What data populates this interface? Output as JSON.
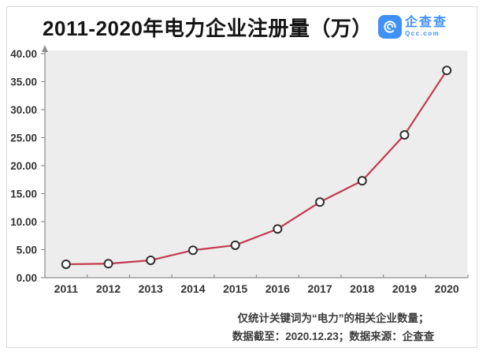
{
  "header": {
    "title": "2011-2020年电力企业注册量（万）",
    "logo": {
      "name": "企查查",
      "domain": "Qcc.com"
    }
  },
  "chart_data": {
    "type": "line",
    "title": "2011-2020年电力企业注册量（万）",
    "categories": [
      "2011",
      "2012",
      "2013",
      "2014",
      "2015",
      "2016",
      "2017",
      "2018",
      "2019",
      "2020"
    ],
    "values": [
      2.4,
      2.5,
      3.1,
      4.9,
      5.8,
      8.7,
      13.5,
      17.3,
      25.5,
      37.0
    ],
    "xlabel": "",
    "ylabel": "",
    "ylim": [
      0,
      40
    ],
    "y_tick_step": 5,
    "y_tick_decimals": 2,
    "grid": false,
    "legend": "none",
    "marker": "open-circle",
    "line_color": "#c23a52",
    "marker_stroke": "#2f2f2f",
    "marker_fill": "#fdfdfd",
    "plot_bg": "#ededed",
    "axis_color": "#8f8f8f",
    "tick_label_color": "#333333"
  },
  "footnote": {
    "line1": "仅统计关键词为“电力”的相关企业数量；",
    "line2": "数据截至：2020.12.23；数据来源：企查查"
  },
  "colors": {
    "brand_blue": "#3f90f7",
    "card_border": "#dbdbdb",
    "title_color": "#141414"
  }
}
